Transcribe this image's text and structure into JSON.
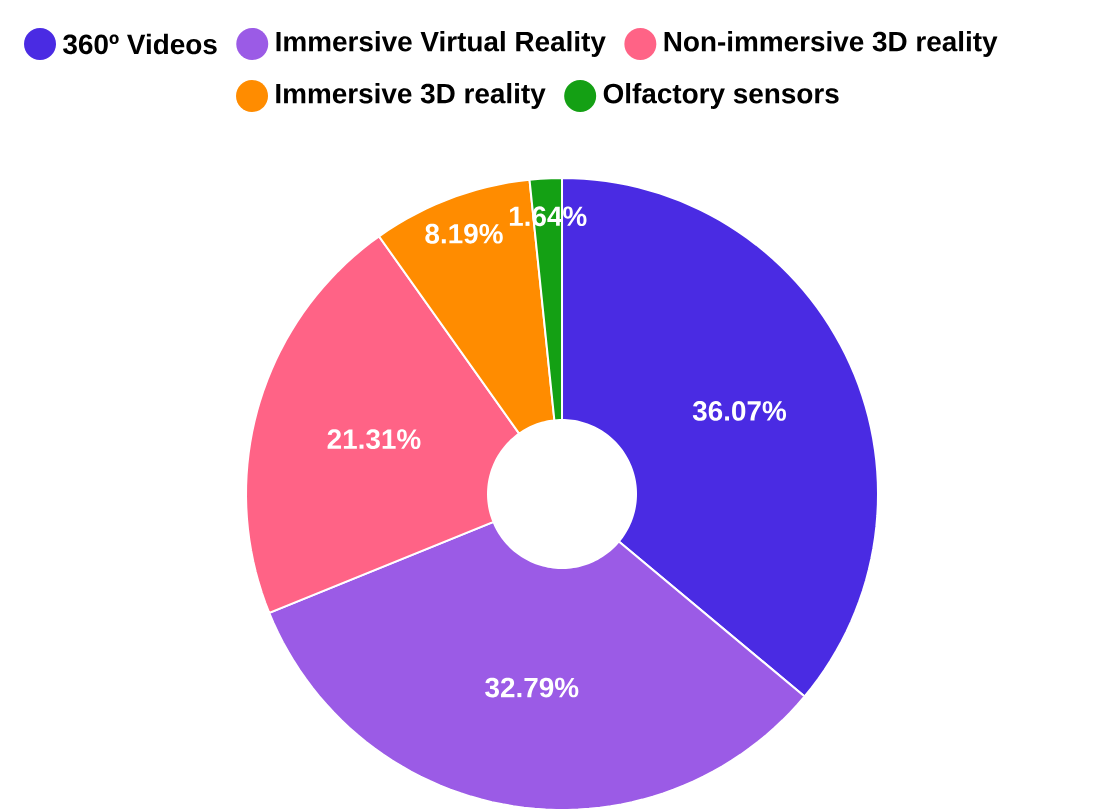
{
  "chart_data": {
    "type": "donut",
    "categories": [
      "360º Videos",
      "Immersive Virtual Reality",
      "Non-immersive 3D reality",
      "Immersive 3D reality",
      "Olfactory sensors"
    ],
    "values": [
      36.07,
      32.79,
      21.31,
      8.19,
      1.64
    ],
    "value_labels": [
      "36.07%",
      "32.79%",
      "21.31%",
      "8.19%",
      "1.64%"
    ],
    "colors": [
      "#4a2be3",
      "#9b5be6",
      "#ff6386",
      "#ff8c00",
      "#14a014"
    ],
    "legend": "top"
  }
}
